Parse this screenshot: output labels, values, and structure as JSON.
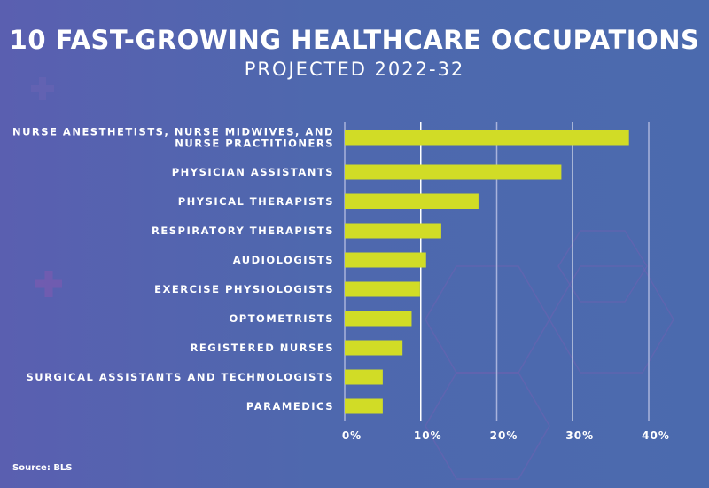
{
  "chart_data": {
    "type": "bar",
    "orientation": "horizontal",
    "title": "10 FAST-GROWING HEALTHCARE OCCUPATIONS",
    "subtitle": "PROJECTED 2022-32",
    "categories": [
      [
        "NURSE ANESTHETISTS, NURSE MIDWIVES, AND",
        "NURSE PRACTITIONERS"
      ],
      [
        "PHYSICIAN ASSISTANTS"
      ],
      [
        "PHYSICAL THERAPISTS"
      ],
      [
        "RESPIRATORY THERAPISTS"
      ],
      [
        "AUDIOLOGISTS"
      ],
      [
        "EXERCISE PHYSIOLOGISTS"
      ],
      [
        "OPTOMETRISTS"
      ],
      [
        "REGISTERED NURSES"
      ],
      [
        "SURGICAL ASSISTANTS AND TECHNOLOGISTS"
      ],
      [
        "PARAMEDICS"
      ]
    ],
    "values": [
      37.4,
      28.5,
      17.6,
      12.7,
      10.7,
      9.9,
      8.8,
      7.6,
      5.0,
      5.0
    ],
    "xlim": [
      0,
      40
    ],
    "xticks": [
      "0%",
      "10%",
      "20%",
      "30%",
      "40%"
    ],
    "xlabel": "",
    "ylabel": "",
    "grid": true,
    "bar_color": "#d1dc26",
    "background_color": "#4e68ae"
  },
  "source": "Source: BLS"
}
